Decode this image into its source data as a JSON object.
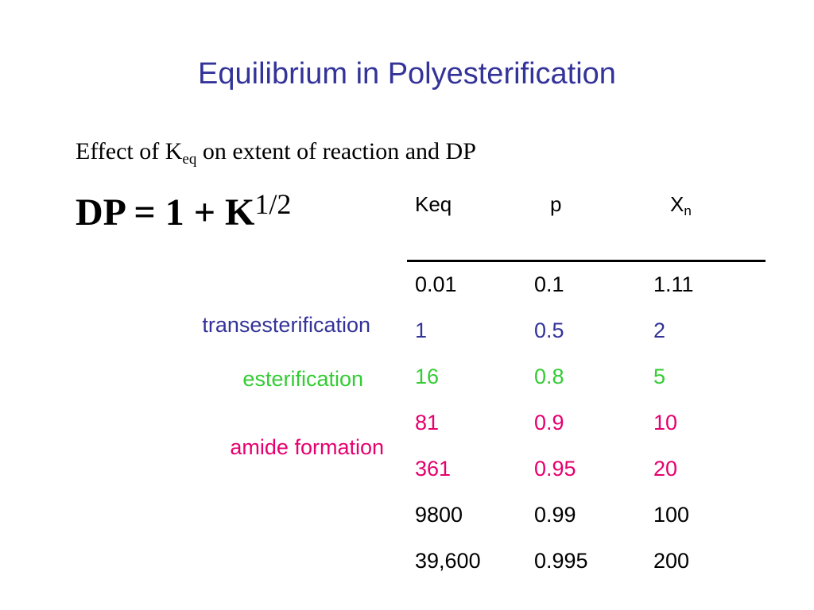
{
  "title": "Equilibrium in Polyesterification",
  "subtitle": {
    "before": "Effect of K",
    "sub": "eq",
    "after": " on extent of reaction and DP"
  },
  "formula": {
    "base": "DP = 1 + K",
    "sup": "1/2"
  },
  "table": {
    "header": [
      {
        "text": "Keq"
      },
      {
        "text": "p"
      },
      {
        "text": "X",
        "sub": "n"
      }
    ],
    "rows": [
      [
        "0.01",
        "0.1",
        "1.11"
      ],
      [
        "1",
        "0.5",
        "2"
      ],
      [
        "16",
        "0.8",
        "5"
      ],
      [
        "81",
        "0.9",
        "10"
      ],
      [
        "361",
        "0.95",
        "20"
      ],
      [
        "9800",
        "0.99",
        "100"
      ],
      [
        "39,600",
        "0.995",
        "200"
      ]
    ]
  },
  "labels": {
    "transesterification": "transesterification",
    "esterification": "esterification",
    "amide": "amide formation"
  }
}
